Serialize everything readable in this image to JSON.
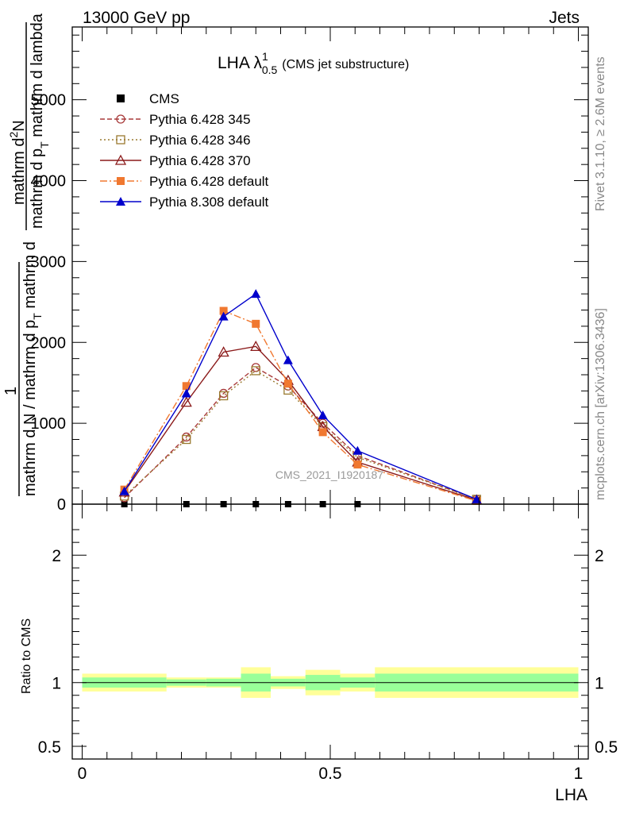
{
  "header": {
    "left": "13000 GeV pp",
    "right": "Jets"
  },
  "side_labels": {
    "rivet": "Rivet 3.1.10, ≥ 2.6M events",
    "mcplots": "mcplots.cern.ch [arXiv:1306.3436]"
  },
  "watermark": "CMS_2021_I1920187",
  "chart_data": [
    {
      "type": "line",
      "title": "LHA λ",
      "title_sup": "1",
      "title_sub": "0.5",
      "subtitle": "(CMS jet substructure)",
      "ylabel": "1 / mathrm d N / mathrm d p_T mathrm d^2N / mathrm d p_T mathrm d lambda",
      "ylabel_pieces": {
        "top_num_a": "mathrm d",
        "top_num_sup": "2",
        "top_num_b": "N",
        "top_den": "mathrm d p",
        "top_den_sub": "T",
        "top_den_b": " mathrm d lambda",
        "one": "1",
        "bot_a": "mathrm d N / mathrm d p",
        "bot_sub": "T",
        "bot_b": " mathrm d"
      },
      "xlim": [
        -0.02,
        1.02
      ],
      "ylim": [
        0,
        5900
      ],
      "y_ticks": [
        0,
        1000,
        2000,
        3000,
        4000,
        5000
      ],
      "y_tick_labels": [
        "0",
        "1000",
        "2000",
        "3000",
        "4000",
        "5000"
      ],
      "legend_position": "top-left",
      "series": [
        {
          "name": "CMS",
          "color": "#000000",
          "marker": "square-filled",
          "dash": "none",
          "x": [
            0.085,
            0.21,
            0.285,
            0.35,
            0.415,
            0.485,
            0.555
          ],
          "y": [
            0,
            0,
            0,
            0,
            0,
            0,
            0
          ]
        },
        {
          "name": "Pythia 6.428 345",
          "color": "#a83a3a",
          "marker": "circle-open",
          "dash": "6,3",
          "x": [
            0.085,
            0.21,
            0.285,
            0.35,
            0.415,
            0.485,
            0.555,
            0.795
          ],
          "y": [
            80,
            830,
            1370,
            1690,
            1460,
            1000,
            600,
            60
          ]
        },
        {
          "name": "Pythia 6.428 346",
          "color": "#9a7a30",
          "marker": "square-open",
          "dash": "2,3",
          "x": [
            0.085,
            0.21,
            0.285,
            0.35,
            0.415,
            0.485,
            0.555,
            0.795
          ],
          "y": [
            100,
            800,
            1340,
            1650,
            1410,
            960,
            580,
            60
          ]
        },
        {
          "name": "Pythia 6.428 370",
          "color": "#8b1a1a",
          "marker": "triangle-open",
          "dash": "none",
          "x": [
            0.085,
            0.21,
            0.285,
            0.35,
            0.415,
            0.485,
            0.555,
            0.795
          ],
          "y": [
            150,
            1260,
            1880,
            1950,
            1530,
            960,
            520,
            50
          ]
        },
        {
          "name": "Pythia 6.428 default",
          "color": "#f07830",
          "marker": "square-filled",
          "dash": "9,3,2,3",
          "x": [
            0.085,
            0.21,
            0.285,
            0.35,
            0.415,
            0.485,
            0.555,
            0.795
          ],
          "y": [
            180,
            1460,
            2390,
            2230,
            1490,
            890,
            490,
            40
          ]
        },
        {
          "name": "Pythia 8.308 default",
          "color": "#0000cc",
          "marker": "triangle-filled",
          "dash": "none",
          "x": [
            0.085,
            0.21,
            0.285,
            0.35,
            0.415,
            0.485,
            0.555,
            0.795
          ],
          "y": [
            160,
            1370,
            2320,
            2600,
            1780,
            1100,
            660,
            60
          ]
        }
      ]
    },
    {
      "type": "area",
      "ylabel": "Ratio to CMS",
      "xlabel": "LHA",
      "xlim": [
        -0.02,
        1.02
      ],
      "ylim": [
        0.4,
        2.4
      ],
      "x_ticks": [
        0,
        0.5,
        1
      ],
      "x_tick_labels": [
        "0",
        "0.5",
        "1"
      ],
      "y_ticks": [
        0.5,
        1,
        2
      ],
      "y_tick_labels": [
        "0.5",
        "1",
        "2"
      ],
      "reference_line": 1,
      "bins": [
        {
          "x0": 0.0,
          "x1": 0.17,
          "yellow": [
            0.93,
            1.07
          ],
          "green": [
            0.96,
            1.04
          ]
        },
        {
          "x0": 0.17,
          "x1": 0.25,
          "yellow": [
            0.96,
            1.04
          ],
          "green": [
            0.975,
            1.025
          ]
        },
        {
          "x0": 0.25,
          "x1": 0.32,
          "yellow": [
            0.96,
            1.04
          ],
          "green": [
            0.97,
            1.03
          ]
        },
        {
          "x0": 0.32,
          "x1": 0.38,
          "yellow": [
            0.88,
            1.12
          ],
          "green": [
            0.93,
            1.07
          ]
        },
        {
          "x0": 0.38,
          "x1": 0.45,
          "yellow": [
            0.95,
            1.05
          ],
          "green": [
            0.97,
            1.03
          ]
        },
        {
          "x0": 0.45,
          "x1": 0.52,
          "yellow": [
            0.9,
            1.1
          ],
          "green": [
            0.94,
            1.06
          ]
        },
        {
          "x0": 0.52,
          "x1": 0.59,
          "yellow": [
            0.93,
            1.07
          ],
          "green": [
            0.96,
            1.04
          ]
        },
        {
          "x0": 0.59,
          "x1": 1.0,
          "yellow": [
            0.88,
            1.12
          ],
          "green": [
            0.93,
            1.07
          ]
        }
      ],
      "colors": {
        "yellow": "#ffff99",
        "green": "#99ff99"
      }
    }
  ]
}
